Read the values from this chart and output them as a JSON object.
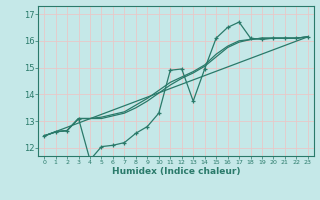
{
  "xlabel": "Humidex (Indice chaleur)",
  "xlim": [
    -0.5,
    23.5
  ],
  "ylim": [
    11.7,
    17.3
  ],
  "xticks": [
    0,
    1,
    2,
    3,
    4,
    5,
    6,
    7,
    8,
    9,
    10,
    11,
    12,
    13,
    14,
    15,
    16,
    17,
    18,
    19,
    20,
    21,
    22,
    23
  ],
  "yticks": [
    12,
    13,
    14,
    15,
    16,
    17
  ],
  "background_color": "#c5e8e8",
  "grid_color": "#e8c8c8",
  "line_color": "#2a7a6a",
  "wavy_x": [
    0,
    1,
    2,
    3,
    4,
    5,
    6,
    7,
    8,
    9,
    10,
    11,
    12,
    13,
    14,
    15,
    16,
    17,
    18,
    19,
    20,
    21,
    22,
    23
  ],
  "wavy_y": [
    12.45,
    12.6,
    12.65,
    13.1,
    11.55,
    12.05,
    12.1,
    12.2,
    12.55,
    12.8,
    13.3,
    14.9,
    14.95,
    13.75,
    14.95,
    16.1,
    16.5,
    16.7,
    16.1,
    16.05,
    16.1,
    16.1,
    16.1,
    16.15
  ],
  "smooth1_x": [
    0,
    1,
    2,
    3,
    4,
    5,
    6,
    7,
    8,
    9,
    10,
    11,
    12,
    13,
    14,
    15,
    16,
    17,
    18,
    19,
    20,
    21,
    22,
    23
  ],
  "smooth1_y": [
    12.45,
    12.6,
    12.65,
    13.1,
    13.1,
    13.1,
    13.2,
    13.3,
    13.5,
    13.75,
    14.05,
    14.35,
    14.6,
    14.8,
    15.05,
    15.4,
    15.75,
    15.95,
    16.05,
    16.1,
    16.1,
    16.1,
    16.1,
    16.15
  ],
  "smooth2_x": [
    0,
    1,
    2,
    3,
    4,
    5,
    6,
    7,
    8,
    9,
    10,
    11,
    12,
    13,
    14,
    15,
    16,
    17,
    18,
    19,
    20,
    21,
    22,
    23
  ],
  "smooth2_y": [
    12.45,
    12.6,
    12.65,
    13.1,
    13.1,
    13.15,
    13.25,
    13.35,
    13.6,
    13.85,
    14.15,
    14.45,
    14.65,
    14.85,
    15.1,
    15.5,
    15.8,
    16.0,
    16.05,
    16.1,
    16.1,
    16.1,
    16.1,
    16.15
  ],
  "line_x": [
    0,
    23
  ],
  "line_y": [
    12.45,
    16.15
  ]
}
